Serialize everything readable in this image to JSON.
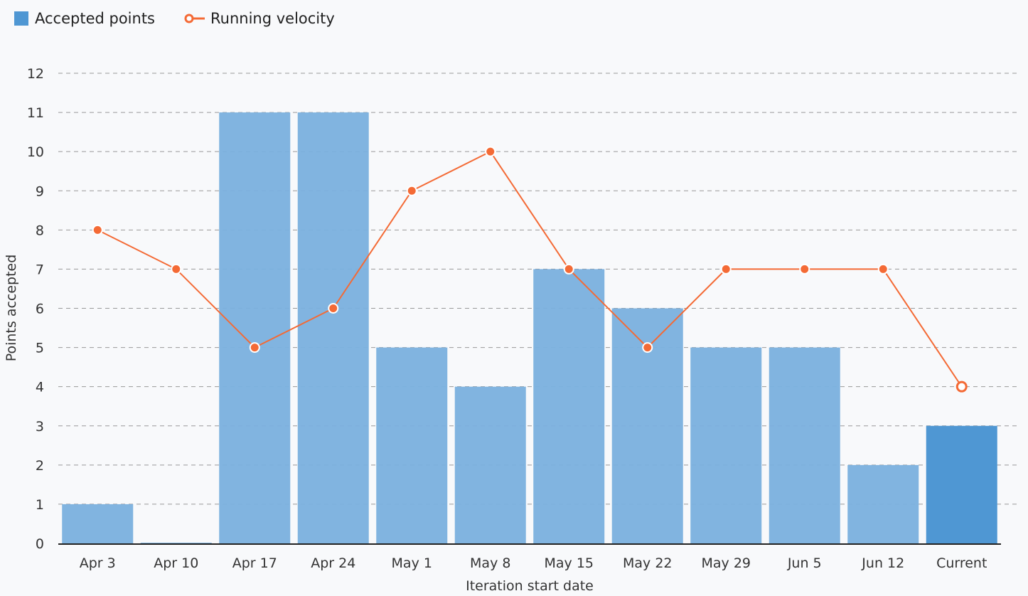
{
  "chart_data": {
    "type": "bar",
    "categories": [
      "Apr 3",
      "Apr 10",
      "Apr 17",
      "Apr 24",
      "May 1",
      "May 8",
      "May 15",
      "May 22",
      "May 29",
      "Jun 5",
      "Jun 12",
      "Current"
    ],
    "series": [
      {
        "name": "Accepted points",
        "type": "bar",
        "values": [
          1,
          0,
          11,
          11,
          5,
          4,
          7,
          6,
          5,
          5,
          2,
          3
        ],
        "color": "#7ab0de",
        "highlight_color": "#4f97d3"
      },
      {
        "name": "Running velocity",
        "type": "line",
        "values": [
          8,
          7,
          5,
          6,
          9,
          10,
          7,
          5,
          7,
          7,
          7,
          4
        ],
        "color": "#f46a35"
      }
    ],
    "xlabel": "Iteration start date",
    "ylabel": "Points accepted",
    "ylim": [
      0,
      12
    ],
    "yticks": [
      0,
      1,
      2,
      3,
      4,
      5,
      6,
      7,
      8,
      9,
      10,
      11,
      12
    ],
    "grid": true,
    "legend": "top-left"
  }
}
